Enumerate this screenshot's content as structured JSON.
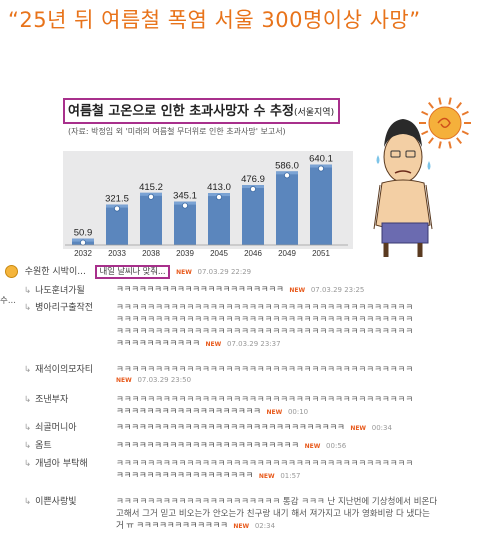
{
  "headline": "“25년 뒤 여름철 폭염 서울 300명이상 사망”",
  "infographic": {
    "title": "여름철 고온으로 인한 초과사망자 수 추정",
    "title_suffix": "(서울지역)",
    "subtitle": "(자료: 박정임 외 '미래의 여름철 무더위로 인한 초과사망' 보고서)"
  },
  "chart_data": {
    "type": "bar",
    "title": "여름철 고온으로 인한 초과사망자 수 추정(서울지역)",
    "categories": [
      "2032",
      "2033",
      "2038",
      "2039",
      "2045",
      "2046",
      "2049",
      "2051"
    ],
    "values": [
      50.9,
      321.5,
      415.2,
      345.1,
      413.0,
      476.9,
      586.0,
      640.1
    ],
    "value_labels": [
      "50.9",
      "321.5",
      "415.2",
      "345.1",
      "413.0",
      "476.9",
      "586.0",
      "640.1"
    ],
    "ylim": [
      0,
      700
    ],
    "grid": false,
    "colors": {
      "bar": "#5b86bd",
      "bar_top": "#7ba3d4"
    }
  },
  "comments": [
    {
      "author": "수원한 시박이...",
      "text": "내일 날씨나 맞춰...",
      "new": "NEW",
      "date": "07.03.29 22:29"
    },
    {
      "author": "나도훈녀가될",
      "text": "ㅋㅋㅋㅋㅋㅋㅋㅋㅋㅋㅋㅋㅋㅋㅋㅋㅋㅋㅋㅋㅋㅋ",
      "new": "NEW",
      "date": "07.03.29 23:25"
    },
    {
      "author": "병아리구출작전",
      "lines": [
        "ㅋㅋㅋㅋㅋㅋㅋㅋㅋㅋㅋㅋㅋㅋㅋㅋㅋㅋㅋㅋㅋㅋㅋㅋㅋㅋㅋㅋㅋㅋㅋㅋㅋㅋㅋㅋㅋㅋ",
        "ㅋㅋㅋㅋㅋㅋㅋㅋㅋㅋㅋㅋㅋㅋㅋㅋㅋㅋㅋㅋㅋㅋㅋㅋㅋㅋㅋㅋㅋㅋㅋㅋㅋㅋㅋㅋㅋㅋ",
        "ㅋㅋㅋㅋㅋㅋㅋㅋㅋㅋㅋㅋㅋㅋㅋㅋㅋㅋㅋㅋㅋㅋㅋㅋㅋㅋㅋㅋㅋㅋㅋㅋㅋㅋㅋㅋㅋㅋ",
        "ㅋㅋㅋㅋㅋㅋㅋㅋㅋㅋㅋ"
      ],
      "new": "NEW",
      "date": "07.03.29 23:37"
    },
    {
      "author": "재석이의모자티",
      "lines": [
        "ㅋㅋㅋㅋㅋㅋㅋㅋㅋㅋㅋㅋㅋㅋㅋㅋㅋㅋㅋㅋㅋㅋㅋㅋㅋㅋㅋㅋㅋㅋㅋㅋㅋㅋㅋㅋㅋㅋ"
      ],
      "new": "NEW",
      "date": "07.03.29 23:50"
    },
    {
      "author": "조낸부자",
      "lines": [
        "ㅋㅋㅋㅋㅋㅋㅋㅋㅋㅋㅋㅋㅋㅋㅋㅋㅋㅋㅋㅋㅋㅋㅋㅋㅋㅋㅋㅋㅋㅋㅋㅋㅋㅋㅋㅋㅋㅋ",
        "ㅋㅋㅋㅋㅋㅋㅋㅋㅋㅋㅋㅋㅋㅋㅋㅋㅋㅋㅋ"
      ],
      "new": "NEW",
      "date": "00:10"
    },
    {
      "author": "쇠골머니아",
      "text": "ㅋㅋㅋㅋㅋㅋㅋㅋㅋㅋㅋㅋㅋㅋㅋㅋㅋㅋㅋㅋㅋㅋㅋㅋㅋㅋㅋㅋㅋㅋ",
      "new": "NEW",
      "date": "00:34"
    },
    {
      "author": "옴트",
      "text": "ㅋㅋㅋㅋㅋㅋㅋㅋㅋㅋㅋㅋㅋㅋㅋㅋㅋㅋㅋㅋㅋㅋㅋㅋ",
      "new": "NEW",
      "date": "00:56"
    },
    {
      "author": "개념아 부탁해",
      "lines": [
        "ㅋㅋㅋㅋㅋㅋㅋㅋㅋㅋㅋㅋㅋㅋㅋㅋㅋㅋㅋㅋㅋㅋㅋㅋㅋㅋㅋㅋㅋㅋㅋㅋㅋㅋㅋㅋㅋㅋ",
        "ㅋㅋㅋㅋㅋㅋㅋㅋㅋㅋㅋㅋㅋㅋㅋㅋㅋㅋ"
      ],
      "new": "NEW",
      "date": "01:57"
    },
    {
      "author": "이쁜사랑빛",
      "lines": [
        "ㅋㅋㅋㅋㅋㅋㅋㅋㅋㅋㅋㅋㅋㅋㅋㅋㅋㅋㅋㅋㅋ 통감 ㅋㅋㅋ 난 지난번에 기상청에서 비온다",
        "고해서 그거 믿고 비오는가 안오는가 친구랑 내기 해서 져가지고 내가 영화비랑 다 냈다는",
        "거 ㅠ ㅋㅋㅋㅋㅋㅋㅋㅋㅋㅋㅋㅋ"
      ],
      "new": "NEW",
      "date": "02:34"
    }
  ],
  "left_edge_label": "수..."
}
